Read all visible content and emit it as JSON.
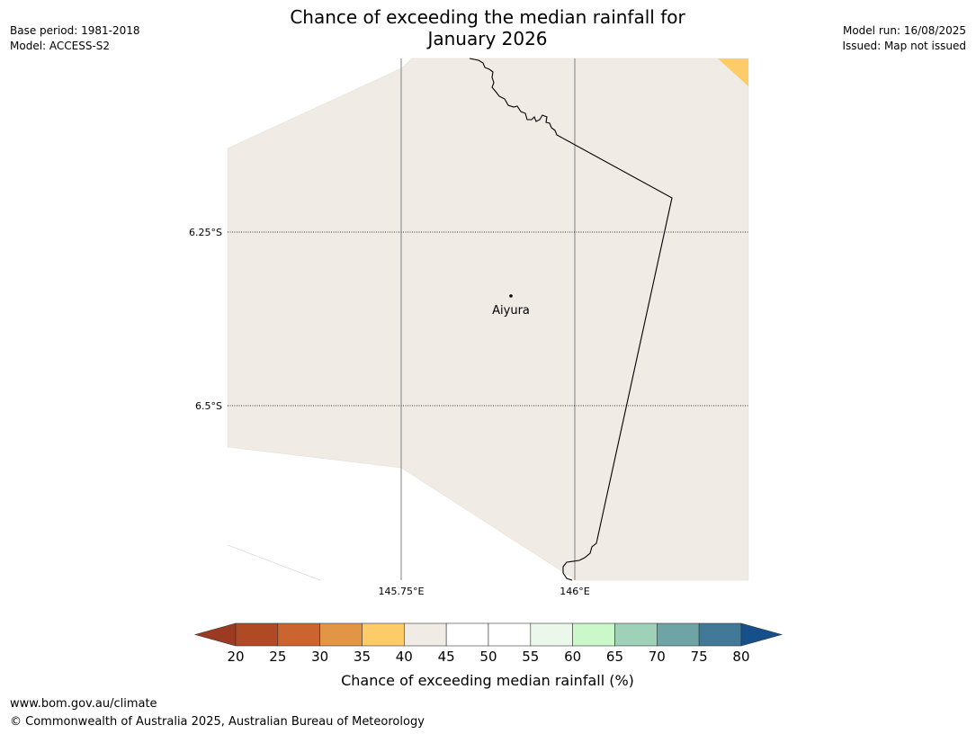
{
  "title_line1": "Chance of exceeding the median rainfall for",
  "title_line2": "January 2026",
  "meta_left": {
    "base_period": "Base period: 1981-2018",
    "model": "Model: ACCESS-S2"
  },
  "meta_right": {
    "model_run": "Model run: 16/08/2025",
    "issued": "Issued: Map not issued"
  },
  "map": {
    "lat_labels": [
      "6.25°S",
      "6.5°S"
    ],
    "lon_labels": [
      "145.75°E",
      "146°E"
    ],
    "place": "Aiyura"
  },
  "colorbar": {
    "ticks": [
      "20",
      "25",
      "30",
      "35",
      "40",
      "45",
      "50",
      "55",
      "60",
      "65",
      "70",
      "75",
      "80"
    ],
    "label": "Chance of exceeding median rainfall (%)",
    "colors": {
      "under": "#9c3a22",
      "bins": [
        "#b04a25",
        "#cc6430",
        "#e29545",
        "#fdcb68",
        "#f0ebe4",
        "#ffffff",
        "#ffffff",
        "#ebf7ea",
        "#caf8c9",
        "#9fd0b8",
        "#6ea4a6",
        "#417996"
      ],
      "over": "#15508a"
    }
  },
  "footer": {
    "url": "www.bom.gov.au/climate",
    "copyright": "© Commonwealth of Australia 2025, Australian Bureau of Meteorology"
  }
}
